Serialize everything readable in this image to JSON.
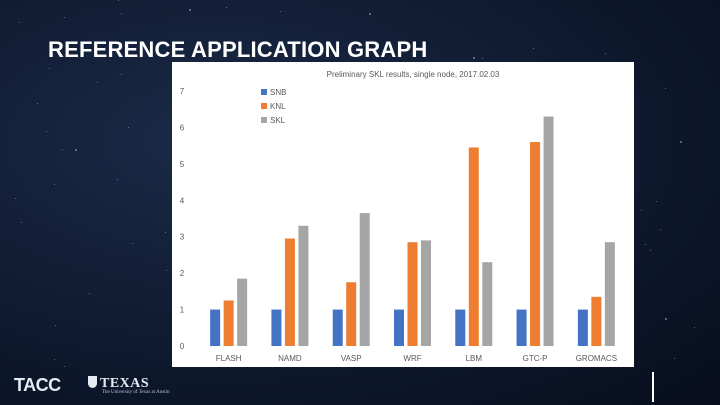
{
  "slide": {
    "title": "REFERENCE APPLICATION GRAPH"
  },
  "footer": {
    "tacc_logo": "TACC",
    "ut_logo": "TEXAS",
    "ut_tagline": "The University of Texas at Austin"
  },
  "chart_data": {
    "type": "bar",
    "title": "Preliminary SKL results, single node, 2017.02.03",
    "xlabel": "",
    "ylabel": "",
    "categories": [
      "FLASH",
      "NAMD",
      "VASP",
      "WRF",
      "LBM",
      "GTC-P",
      "GROMACS"
    ],
    "series": [
      {
        "name": "SNB",
        "color": "#4472c4",
        "values": [
          1,
          1,
          1,
          1,
          1,
          1,
          1
        ]
      },
      {
        "name": "KNL",
        "color": "#ed7d31",
        "values": [
          1.25,
          2.95,
          1.75,
          2.85,
          5.45,
          5.6,
          1.35
        ]
      },
      {
        "name": "SKL",
        "color": "#a5a5a5",
        "values": [
          1.85,
          3.3,
          3.65,
          2.9,
          2.3,
          6.3,
          2.85
        ]
      }
    ],
    "ylim": [
      0,
      7
    ],
    "yticks": [
      0,
      1,
      2,
      3,
      4,
      5,
      6,
      7
    ],
    "grid": false,
    "legend_position": "top-left"
  }
}
